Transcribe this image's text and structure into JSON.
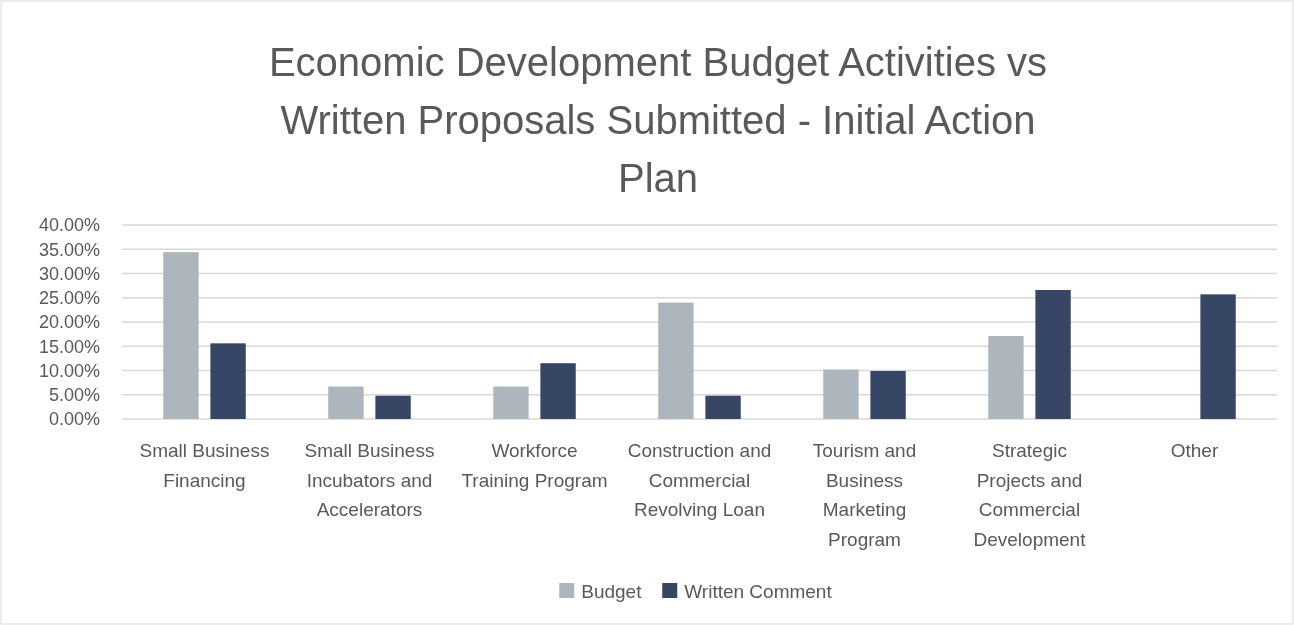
{
  "chart_data": {
    "type": "bar",
    "title": "Economic Development Budget Activities vs Written Proposals Submitted - Initial Action Plan",
    "categories": [
      "Small Business Financing",
      "Small Business Incubators and Accelerators",
      "Workforce Training Program",
      "Construction and Commercial Revolving Loan",
      "Tourism and Business Marketing Program",
      "Strategic Projects and Commercial Development",
      "Other"
    ],
    "series": [
      {
        "name": "Budget",
        "color": "#adb5bd",
        "values": [
          34.4,
          6.7,
          6.7,
          24.0,
          10.2,
          17.1,
          0
        ]
      },
      {
        "name": "Written Comment",
        "color": "#374664",
        "values": [
          15.6,
          4.8,
          11.5,
          4.8,
          9.9,
          26.6,
          25.7
        ]
      }
    ],
    "ylim": [
      0,
      40
    ],
    "yticks": [
      {
        "value": 0,
        "label": "0.00%"
      },
      {
        "value": 5,
        "label": "5.00%"
      },
      {
        "value": 10,
        "label": "10.00%"
      },
      {
        "value": 15,
        "label": "15.00%"
      },
      {
        "value": 20,
        "label": "20.00%"
      },
      {
        "value": 25,
        "label": "25.00%"
      },
      {
        "value": 30,
        "label": "30.00%"
      },
      {
        "value": 35,
        "label": "35.00%"
      },
      {
        "value": 40,
        "label": "40.00%"
      }
    ],
    "grid": "y",
    "legend": "bottom"
  }
}
